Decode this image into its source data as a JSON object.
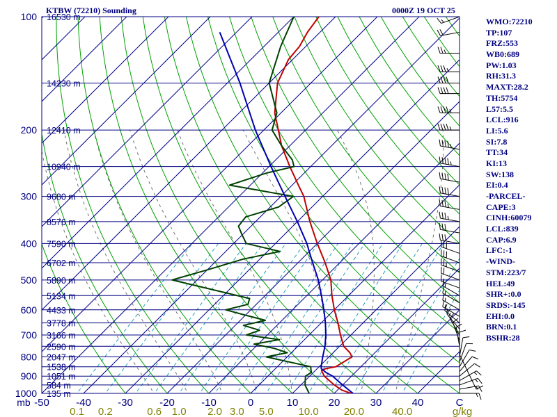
{
  "header": {
    "station": "KTBW (72210) Sounding",
    "time": "0000Z 19 OCT 25"
  },
  "indices": [
    "WMO:72210",
    "TP:107",
    "FRZ:553",
    "WB0:689",
    "PW:1.03",
    "RH:31.3",
    "MAXT:28.2",
    "TH:5754",
    "L57:5.5",
    "LCL:916",
    "LI:5.6",
    "SI:7.8",
    "TT:34",
    "KI:13",
    "SW:138",
    "EI:0.4",
    "-PARCEL-",
    "CAPE:3",
    "CINH:60079",
    "LCL:839",
    "CAP:6.9",
    "LFC:-1",
    "-WIND-",
    "STM:223/7",
    "HEL:49",
    "SHR+:0.0",
    "SRDS:-145",
    "EHI:0.0",
    "BRN:0.1",
    "BSHR:28"
  ],
  "colors": {
    "temperature": "#c00000",
    "dewpoint": "#004000",
    "parcel": "#0000b0",
    "isobar": "#000080",
    "dry_adiabat": "#00a000",
    "isotherm": "#00008a",
    "moist_adiabat": "#707070",
    "mixing_ratio": "#20a0c0",
    "mixing_label": "#808000"
  },
  "chart_data": {
    "type": "line",
    "title": "KTBW (72210) Sounding",
    "subtitle": "0000Z 19 OCT 25",
    "pressure_unit": "mb",
    "skew_t_log_p": true,
    "grid": true,
    "xlim": [
      -50,
      50
    ],
    "ylim": [
      1000,
      100
    ],
    "pressure_levels": [
      100,
      200,
      300,
      400,
      500,
      600,
      700,
      800,
      900,
      1000
    ],
    "pressure_labels": [
      "100",
      "200",
      "300",
      "400",
      "500",
      "600",
      "700",
      "800",
      "900",
      "1000"
    ],
    "temperature_ticks": [
      -50,
      -40,
      -30,
      -20,
      -10,
      0,
      10,
      20,
      30,
      40
    ],
    "temperature_labels": [
      "-50",
      "-40",
      "-30",
      "-20",
      "-10",
      "0",
      "10",
      "20",
      "30",
      "40"
    ],
    "temperature_end_label": "C",
    "mixing_ratios": [
      0.1,
      0.2,
      0.6,
      1.0,
      2.0,
      3.0,
      5.0,
      10.0,
      20.0,
      40.0
    ],
    "mixing_ratio_labels": [
      "0.1",
      "0.2",
      "0.6",
      "1.0",
      "2.0",
      "3.0",
      "5.0",
      "10.0",
      "20.0",
      "40.0"
    ],
    "mixing_ratio_unit": "g/kg",
    "heights": [
      {
        "p": 100,
        "label": "16530 m"
      },
      {
        "p": 150,
        "label": "14230 m"
      },
      {
        "p": 200,
        "label": "12410 m"
      },
      {
        "p": 250,
        "label": "10940 m"
      },
      {
        "p": 300,
        "label": "9680 m"
      },
      {
        "p": 350,
        "label": "8576 m"
      },
      {
        "p": 400,
        "label": "7590 m"
      },
      {
        "p": 450,
        "label": "6702 m"
      },
      {
        "p": 500,
        "label": "5890 m"
      },
      {
        "p": 550,
        "label": "5134 m"
      },
      {
        "p": 600,
        "label": "4433 m"
      },
      {
        "p": 650,
        "label": "3778 m"
      },
      {
        "p": 700,
        "label": "3166 m"
      },
      {
        "p": 750,
        "label": "2590 m"
      },
      {
        "p": 800,
        "label": "2047 m"
      },
      {
        "p": 850,
        "label": "1538 m"
      },
      {
        "p": 900,
        "label": "1051 m"
      },
      {
        "p": 950,
        "label": "584 m"
      },
      {
        "p": 1000,
        "label": "135 m"
      }
    ],
    "series": [
      {
        "key": "temperature",
        "points": [
          [
            1015,
            26.5
          ],
          [
            1000,
            24
          ],
          [
            980,
            21
          ],
          [
            950,
            18
          ],
          [
            900,
            13.5
          ],
          [
            870,
            11.5
          ],
          [
            860,
            12
          ],
          [
            850,
            14
          ],
          [
            800,
            15.5
          ],
          [
            780,
            14
          ],
          [
            750,
            11
          ],
          [
            700,
            7.5
          ],
          [
            650,
            4
          ],
          [
            600,
            0
          ],
          [
            550,
            -4
          ],
          [
            500,
            -8
          ],
          [
            450,
            -13.5
          ],
          [
            400,
            -20
          ],
          [
            350,
            -27
          ],
          [
            300,
            -34.5
          ],
          [
            280,
            -38.5
          ],
          [
            250,
            -45
          ],
          [
            220,
            -52
          ],
          [
            200,
            -56.5
          ],
          [
            180,
            -61.5
          ],
          [
            150,
            -68
          ],
          [
            130,
            -71
          ],
          [
            120,
            -71.5
          ],
          [
            110,
            -73
          ],
          [
            100,
            -74
          ]
        ]
      },
      {
        "key": "dewpoint",
        "points": [
          [
            1015,
            15
          ],
          [
            1000,
            14
          ],
          [
            950,
            11
          ],
          [
            900,
            9
          ],
          [
            880,
            9.5
          ],
          [
            860,
            8.5
          ],
          [
            850,
            8
          ],
          [
            800,
            -5
          ],
          [
            780,
            -1
          ],
          [
            760,
            -5
          ],
          [
            740,
            -11
          ],
          [
            720,
            -6
          ],
          [
            700,
            -15
          ],
          [
            680,
            -13
          ],
          [
            660,
            -18
          ],
          [
            640,
            -14
          ],
          [
            620,
            -20
          ],
          [
            600,
            -26
          ],
          [
            580,
            -22
          ],
          [
            560,
            -23
          ],
          [
            520,
            -38
          ],
          [
            500,
            -46
          ],
          [
            470,
            -40
          ],
          [
            440,
            -34
          ],
          [
            420,
            -27
          ],
          [
            400,
            -37
          ],
          [
            380,
            -40
          ],
          [
            360,
            -43
          ],
          [
            340,
            -43.5
          ],
          [
            320,
            -38
          ],
          [
            300,
            -37
          ],
          [
            280,
            -55
          ],
          [
            260,
            -49
          ],
          [
            250,
            -44
          ],
          [
            240,
            -46
          ],
          [
            220,
            -52
          ],
          [
            200,
            -58
          ],
          [
            180,
            -61
          ],
          [
            150,
            -70
          ],
          [
            120,
            -76
          ],
          [
            100,
            -80
          ]
        ]
      },
      {
        "key": "parcel",
        "points": [
          [
            1015,
            26.5
          ],
          [
            1000,
            24.5
          ],
          [
            950,
            20
          ],
          [
            900,
            15.5
          ],
          [
            880,
            13
          ],
          [
            860,
            11
          ],
          [
            850,
            10.5
          ],
          [
            800,
            8.5
          ],
          [
            750,
            6.5
          ],
          [
            700,
            4
          ],
          [
            650,
            1
          ],
          [
            600,
            -2.5
          ],
          [
            550,
            -6.5
          ],
          [
            500,
            -11
          ],
          [
            450,
            -16.5
          ],
          [
            400,
            -22.5
          ],
          [
            350,
            -30
          ],
          [
            300,
            -39
          ],
          [
            250,
            -49.5
          ],
          [
            200,
            -62
          ],
          [
            150,
            -77
          ],
          [
            110,
            -94
          ]
        ]
      }
    ],
    "wind_barbs": [
      {
        "p": 1000,
        "dir": 90,
        "kt": 15
      },
      {
        "p": 975,
        "dir": 80,
        "kt": 15
      },
      {
        "p": 950,
        "dir": 70,
        "kt": 15
      },
      {
        "p": 925,
        "dir": 60,
        "kt": 15
      },
      {
        "p": 900,
        "dir": 50,
        "kt": 10
      },
      {
        "p": 875,
        "dir": 40,
        "kt": 10
      },
      {
        "p": 850,
        "dir": 30,
        "kt": 10
      },
      {
        "p": 825,
        "dir": 20,
        "kt": 10
      },
      {
        "p": 800,
        "dir": 10,
        "kt": 10
      },
      {
        "p": 775,
        "dir": 360,
        "kt": 10
      },
      {
        "p": 750,
        "dir": 350,
        "kt": 10
      },
      {
        "p": 725,
        "dir": 340,
        "kt": 10
      },
      {
        "p": 700,
        "dir": 330,
        "kt": 10
      },
      {
        "p": 675,
        "dir": 320,
        "kt": 15
      },
      {
        "p": 650,
        "dir": 310,
        "kt": 15
      },
      {
        "p": 625,
        "dir": 300,
        "kt": 15
      },
      {
        "p": 600,
        "dir": 300,
        "kt": 15
      },
      {
        "p": 575,
        "dir": 300,
        "kt": 15
      },
      {
        "p": 550,
        "dir": 300,
        "kt": 15
      },
      {
        "p": 525,
        "dir": 290,
        "kt": 15
      },
      {
        "p": 500,
        "dir": 290,
        "kt": 20
      },
      {
        "p": 475,
        "dir": 290,
        "kt": 25
      },
      {
        "p": 450,
        "dir": 290,
        "kt": 30
      },
      {
        "p": 425,
        "dir": 290,
        "kt": 30
      },
      {
        "p": 400,
        "dir": 280,
        "kt": 30
      },
      {
        "p": 375,
        "dir": 280,
        "kt": 30
      },
      {
        "p": 350,
        "dir": 280,
        "kt": 35
      },
      {
        "p": 325,
        "dir": 280,
        "kt": 35
      },
      {
        "p": 300,
        "dir": 280,
        "kt": 40
      },
      {
        "p": 275,
        "dir": 280,
        "kt": 40
      },
      {
        "p": 250,
        "dir": 280,
        "kt": 45
      },
      {
        "p": 225,
        "dir": 280,
        "kt": 45
      },
      {
        "p": 200,
        "dir": 270,
        "kt": 45
      },
      {
        "p": 180,
        "dir": 270,
        "kt": 45
      },
      {
        "p": 160,
        "dir": 270,
        "kt": 40
      },
      {
        "p": 150,
        "dir": 270,
        "kt": 40
      },
      {
        "p": 140,
        "dir": 270,
        "kt": 35
      },
      {
        "p": 125,
        "dir": 270,
        "kt": 25
      },
      {
        "p": 110,
        "dir": 260,
        "kt": 20
      },
      {
        "p": 100,
        "dir": 250,
        "kt": 15
      }
    ],
    "hodograph": true
  }
}
